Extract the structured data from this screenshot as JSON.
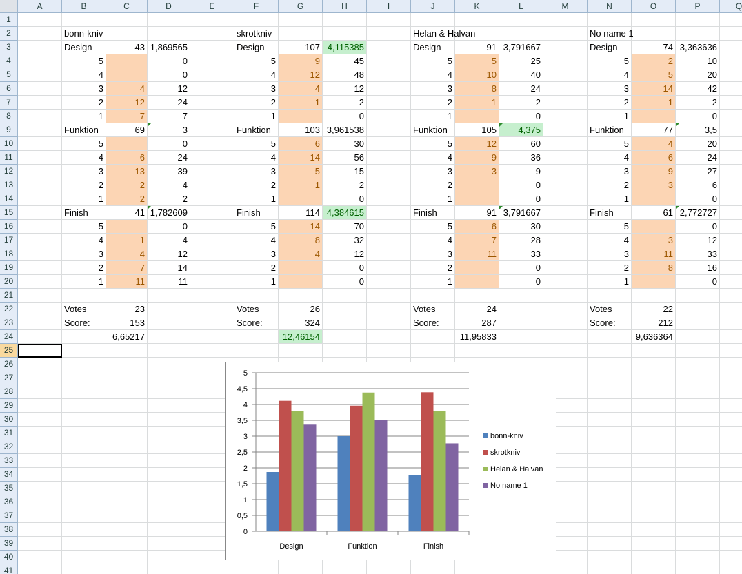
{
  "columns": [
    "A",
    "B",
    "C",
    "D",
    "E",
    "F",
    "G",
    "H",
    "I",
    "J",
    "K",
    "L",
    "M",
    "N",
    "O",
    "P",
    "Q"
  ],
  "rows_count": 41,
  "active_cell": "A25",
  "cells": [
    [
      "B2",
      "bonn-kniv",
      "t",
      ""
    ],
    [
      "F2",
      "skrotkniv",
      "t",
      ""
    ],
    [
      "J2",
      "Helan & Halvan",
      "t",
      ""
    ],
    [
      "N2",
      "No name 1",
      "t",
      ""
    ],
    [
      "B3",
      "Design",
      "t",
      ""
    ],
    [
      "C3",
      "43",
      "n",
      ""
    ],
    [
      "D3",
      "1,869565",
      "n",
      ""
    ],
    [
      "B4",
      "5",
      "n",
      ""
    ],
    [
      "C4",
      "",
      "n",
      "o"
    ],
    [
      "D4",
      "0",
      "n",
      ""
    ],
    [
      "B5",
      "4",
      "n",
      ""
    ],
    [
      "C5",
      "",
      "n",
      "o"
    ],
    [
      "D5",
      "0",
      "n",
      ""
    ],
    [
      "B6",
      "3",
      "n",
      ""
    ],
    [
      "C6",
      "4",
      "n",
      "o"
    ],
    [
      "D6",
      "12",
      "n",
      ""
    ],
    [
      "B7",
      "2",
      "n",
      ""
    ],
    [
      "C7",
      "12",
      "n",
      "o"
    ],
    [
      "D7",
      "24",
      "n",
      ""
    ],
    [
      "B8",
      "1",
      "n",
      ""
    ],
    [
      "C8",
      "7",
      "n",
      "o"
    ],
    [
      "D8",
      "7",
      "n",
      ""
    ],
    [
      "B9",
      "Funktion",
      "t",
      ""
    ],
    [
      "C9",
      "69",
      "n",
      ""
    ],
    [
      "D9",
      "3",
      "n",
      "tri"
    ],
    [
      "B10",
      "5",
      "n",
      ""
    ],
    [
      "C10",
      "",
      "n",
      "o"
    ],
    [
      "D10",
      "0",
      "n",
      ""
    ],
    [
      "B11",
      "4",
      "n",
      ""
    ],
    [
      "C11",
      "6",
      "n",
      "o"
    ],
    [
      "D11",
      "24",
      "n",
      ""
    ],
    [
      "B12",
      "3",
      "n",
      ""
    ],
    [
      "C12",
      "13",
      "n",
      "o"
    ],
    [
      "D12",
      "39",
      "n",
      ""
    ],
    [
      "B13",
      "2",
      "n",
      ""
    ],
    [
      "C13",
      "2",
      "n",
      "o"
    ],
    [
      "D13",
      "4",
      "n",
      ""
    ],
    [
      "B14",
      "1",
      "n",
      ""
    ],
    [
      "C14",
      "2",
      "n",
      "o"
    ],
    [
      "D14",
      "2",
      "n",
      ""
    ],
    [
      "B15",
      "Finish",
      "t",
      ""
    ],
    [
      "C15",
      "41",
      "n",
      ""
    ],
    [
      "D15",
      "1,782609",
      "n",
      "tri"
    ],
    [
      "B16",
      "5",
      "n",
      ""
    ],
    [
      "C16",
      "",
      "n",
      "o"
    ],
    [
      "D16",
      "0",
      "n",
      ""
    ],
    [
      "B17",
      "4",
      "n",
      ""
    ],
    [
      "C17",
      "1",
      "n",
      "o"
    ],
    [
      "D17",
      "4",
      "n",
      ""
    ],
    [
      "B18",
      "3",
      "n",
      ""
    ],
    [
      "C18",
      "4",
      "n",
      "o"
    ],
    [
      "D18",
      "12",
      "n",
      ""
    ],
    [
      "B19",
      "2",
      "n",
      ""
    ],
    [
      "C19",
      "7",
      "n",
      "o"
    ],
    [
      "D19",
      "14",
      "n",
      ""
    ],
    [
      "B20",
      "1",
      "n",
      ""
    ],
    [
      "C20",
      "11",
      "n",
      "o"
    ],
    [
      "D20",
      "11",
      "n",
      ""
    ],
    [
      "B22",
      "Votes",
      "t",
      ""
    ],
    [
      "C22",
      "23",
      "n",
      ""
    ],
    [
      "B23",
      "Score:",
      "t",
      ""
    ],
    [
      "C23",
      "153",
      "n",
      ""
    ],
    [
      "C24",
      "6,65217",
      "n",
      ""
    ],
    [
      "F3",
      "Design",
      "t",
      ""
    ],
    [
      "G3",
      "107",
      "n",
      ""
    ],
    [
      "H3",
      "4,115385",
      "n",
      "g"
    ],
    [
      "F4",
      "5",
      "n",
      ""
    ],
    [
      "G4",
      "9",
      "n",
      "o"
    ],
    [
      "H4",
      "45",
      "n",
      ""
    ],
    [
      "F5",
      "4",
      "n",
      ""
    ],
    [
      "G5",
      "12",
      "n",
      "o"
    ],
    [
      "H5",
      "48",
      "n",
      ""
    ],
    [
      "F6",
      "3",
      "n",
      ""
    ],
    [
      "G6",
      "4",
      "n",
      "o"
    ],
    [
      "H6",
      "12",
      "n",
      ""
    ],
    [
      "F7",
      "2",
      "n",
      ""
    ],
    [
      "G7",
      "1",
      "n",
      "o"
    ],
    [
      "H7",
      "2",
      "n",
      ""
    ],
    [
      "F8",
      "1",
      "n",
      ""
    ],
    [
      "G8",
      "",
      "n",
      "o"
    ],
    [
      "H8",
      "0",
      "n",
      ""
    ],
    [
      "F9",
      "Funktion",
      "t",
      ""
    ],
    [
      "G9",
      "103",
      "n",
      ""
    ],
    [
      "H9",
      "3,961538",
      "n",
      ""
    ],
    [
      "F10",
      "5",
      "n",
      ""
    ],
    [
      "G10",
      "6",
      "n",
      "o"
    ],
    [
      "H10",
      "30",
      "n",
      ""
    ],
    [
      "F11",
      "4",
      "n",
      ""
    ],
    [
      "G11",
      "14",
      "n",
      "o"
    ],
    [
      "H11",
      "56",
      "n",
      ""
    ],
    [
      "F12",
      "3",
      "n",
      ""
    ],
    [
      "G12",
      "5",
      "n",
      "o"
    ],
    [
      "H12",
      "15",
      "n",
      ""
    ],
    [
      "F13",
      "2",
      "n",
      ""
    ],
    [
      "G13",
      "1",
      "n",
      "o"
    ],
    [
      "H13",
      "2",
      "n",
      ""
    ],
    [
      "F14",
      "1",
      "n",
      ""
    ],
    [
      "G14",
      "",
      "n",
      "o"
    ],
    [
      "H14",
      "0",
      "n",
      ""
    ],
    [
      "F15",
      "Finish",
      "t",
      ""
    ],
    [
      "G15",
      "114",
      "n",
      ""
    ],
    [
      "H15",
      "4,384615",
      "n",
      "g"
    ],
    [
      "F16",
      "5",
      "n",
      ""
    ],
    [
      "G16",
      "14",
      "n",
      "o"
    ],
    [
      "H16",
      "70",
      "n",
      ""
    ],
    [
      "F17",
      "4",
      "n",
      ""
    ],
    [
      "G17",
      "8",
      "n",
      "o"
    ],
    [
      "H17",
      "32",
      "n",
      ""
    ],
    [
      "F18",
      "3",
      "n",
      ""
    ],
    [
      "G18",
      "4",
      "n",
      "o"
    ],
    [
      "H18",
      "12",
      "n",
      ""
    ],
    [
      "F19",
      "2",
      "n",
      ""
    ],
    [
      "G19",
      "",
      "n",
      "o"
    ],
    [
      "H19",
      "0",
      "n",
      ""
    ],
    [
      "F20",
      "1",
      "n",
      ""
    ],
    [
      "G20",
      "",
      "n",
      "o"
    ],
    [
      "H20",
      "0",
      "n",
      ""
    ],
    [
      "F22",
      "Votes",
      "t",
      ""
    ],
    [
      "G22",
      "26",
      "n",
      ""
    ],
    [
      "F23",
      "Score:",
      "t",
      ""
    ],
    [
      "G23",
      "324",
      "n",
      ""
    ],
    [
      "G24",
      "12,46154",
      "n",
      "g"
    ],
    [
      "J3",
      "Design",
      "t",
      ""
    ],
    [
      "K3",
      "91",
      "n",
      ""
    ],
    [
      "L3",
      "3,791667",
      "n",
      ""
    ],
    [
      "J4",
      "5",
      "n",
      ""
    ],
    [
      "K4",
      "5",
      "n",
      "o"
    ],
    [
      "L4",
      "25",
      "n",
      ""
    ],
    [
      "J5",
      "4",
      "n",
      ""
    ],
    [
      "K5",
      "10",
      "n",
      "o"
    ],
    [
      "L5",
      "40",
      "n",
      ""
    ],
    [
      "J6",
      "3",
      "n",
      ""
    ],
    [
      "K6",
      "8",
      "n",
      "o"
    ],
    [
      "L6",
      "24",
      "n",
      ""
    ],
    [
      "J7",
      "2",
      "n",
      ""
    ],
    [
      "K7",
      "1",
      "n",
      "o"
    ],
    [
      "L7",
      "2",
      "n",
      ""
    ],
    [
      "J8",
      "1",
      "n",
      ""
    ],
    [
      "K8",
      "",
      "n",
      "o"
    ],
    [
      "L8",
      "0",
      "n",
      ""
    ],
    [
      "J9",
      "Funktion",
      "t",
      ""
    ],
    [
      "K9",
      "105",
      "n",
      ""
    ],
    [
      "L9",
      "4,375",
      "n",
      "g tri"
    ],
    [
      "J10",
      "5",
      "n",
      ""
    ],
    [
      "K10",
      "12",
      "n",
      "o"
    ],
    [
      "L10",
      "60",
      "n",
      ""
    ],
    [
      "J11",
      "4",
      "n",
      ""
    ],
    [
      "K11",
      "9",
      "n",
      "o"
    ],
    [
      "L11",
      "36",
      "n",
      ""
    ],
    [
      "J12",
      "3",
      "n",
      ""
    ],
    [
      "K12",
      "3",
      "n",
      "o"
    ],
    [
      "L12",
      "9",
      "n",
      ""
    ],
    [
      "J13",
      "2",
      "n",
      ""
    ],
    [
      "K13",
      "",
      "n",
      "o"
    ],
    [
      "L13",
      "0",
      "n",
      ""
    ],
    [
      "J14",
      "1",
      "n",
      ""
    ],
    [
      "K14",
      "",
      "n",
      "o"
    ],
    [
      "L14",
      "0",
      "n",
      ""
    ],
    [
      "J15",
      "Finish",
      "t",
      ""
    ],
    [
      "K15",
      "91",
      "n",
      ""
    ],
    [
      "L15",
      "3,791667",
      "n",
      "tri"
    ],
    [
      "J16",
      "5",
      "n",
      ""
    ],
    [
      "K16",
      "6",
      "n",
      "o"
    ],
    [
      "L16",
      "30",
      "n",
      ""
    ],
    [
      "J17",
      "4",
      "n",
      ""
    ],
    [
      "K17",
      "7",
      "n",
      "o"
    ],
    [
      "L17",
      "28",
      "n",
      ""
    ],
    [
      "J18",
      "3",
      "n",
      ""
    ],
    [
      "K18",
      "11",
      "n",
      "o"
    ],
    [
      "L18",
      "33",
      "n",
      ""
    ],
    [
      "J19",
      "2",
      "n",
      ""
    ],
    [
      "K19",
      "",
      "n",
      "o"
    ],
    [
      "L19",
      "0",
      "n",
      ""
    ],
    [
      "J20",
      "1",
      "n",
      ""
    ],
    [
      "K20",
      "",
      "n",
      "o"
    ],
    [
      "L20",
      "0",
      "n",
      ""
    ],
    [
      "J22",
      "Votes",
      "t",
      ""
    ],
    [
      "K22",
      "24",
      "n",
      ""
    ],
    [
      "J23",
      "Score:",
      "t",
      ""
    ],
    [
      "K23",
      "287",
      "n",
      ""
    ],
    [
      "K24",
      "11,95833",
      "n",
      ""
    ],
    [
      "N3",
      "Design",
      "t",
      ""
    ],
    [
      "O3",
      "74",
      "n",
      ""
    ],
    [
      "P3",
      "3,363636",
      "n",
      ""
    ],
    [
      "N4",
      "5",
      "n",
      ""
    ],
    [
      "O4",
      "2",
      "n",
      "o"
    ],
    [
      "P4",
      "10",
      "n",
      ""
    ],
    [
      "N5",
      "4",
      "n",
      ""
    ],
    [
      "O5",
      "5",
      "n",
      "o"
    ],
    [
      "P5",
      "20",
      "n",
      ""
    ],
    [
      "N6",
      "3",
      "n",
      ""
    ],
    [
      "O6",
      "14",
      "n",
      "o"
    ],
    [
      "P6",
      "42",
      "n",
      ""
    ],
    [
      "N7",
      "2",
      "n",
      ""
    ],
    [
      "O7",
      "1",
      "n",
      "o"
    ],
    [
      "P7",
      "2",
      "n",
      ""
    ],
    [
      "N8",
      "1",
      "n",
      ""
    ],
    [
      "O8",
      "",
      "n",
      "o"
    ],
    [
      "P8",
      "0",
      "n",
      ""
    ],
    [
      "N9",
      "Funktion",
      "t",
      ""
    ],
    [
      "O9",
      "77",
      "n",
      ""
    ],
    [
      "P9",
      "3,5",
      "n",
      "tri"
    ],
    [
      "N10",
      "5",
      "n",
      ""
    ],
    [
      "O10",
      "4",
      "n",
      "o"
    ],
    [
      "P10",
      "20",
      "n",
      ""
    ],
    [
      "N11",
      "4",
      "n",
      ""
    ],
    [
      "O11",
      "6",
      "n",
      "o"
    ],
    [
      "P11",
      "24",
      "n",
      ""
    ],
    [
      "N12",
      "3",
      "n",
      ""
    ],
    [
      "O12",
      "9",
      "n",
      "o"
    ],
    [
      "P12",
      "27",
      "n",
      ""
    ],
    [
      "N13",
      "2",
      "n",
      ""
    ],
    [
      "O13",
      "3",
      "n",
      "o"
    ],
    [
      "P13",
      "6",
      "n",
      ""
    ],
    [
      "N14",
      "1",
      "n",
      ""
    ],
    [
      "O14",
      "",
      "n",
      "o"
    ],
    [
      "P14",
      "0",
      "n",
      ""
    ],
    [
      "N15",
      "Finish",
      "t",
      ""
    ],
    [
      "O15",
      "61",
      "n",
      ""
    ],
    [
      "P15",
      "2,772727",
      "n",
      "tri"
    ],
    [
      "N16",
      "5",
      "n",
      ""
    ],
    [
      "O16",
      "",
      "n",
      "o"
    ],
    [
      "P16",
      "0",
      "n",
      ""
    ],
    [
      "N17",
      "4",
      "n",
      ""
    ],
    [
      "O17",
      "3",
      "n",
      "o"
    ],
    [
      "P17",
      "12",
      "n",
      ""
    ],
    [
      "N18",
      "3",
      "n",
      ""
    ],
    [
      "O18",
      "11",
      "n",
      "o"
    ],
    [
      "P18",
      "33",
      "n",
      ""
    ],
    [
      "N19",
      "2",
      "n",
      ""
    ],
    [
      "O19",
      "8",
      "n",
      "o"
    ],
    [
      "P19",
      "16",
      "n",
      ""
    ],
    [
      "N20",
      "1",
      "n",
      ""
    ],
    [
      "O20",
      "",
      "n",
      "o"
    ],
    [
      "P20",
      "0",
      "n",
      ""
    ],
    [
      "N22",
      "Votes",
      "t",
      ""
    ],
    [
      "O22",
      "22",
      "n",
      ""
    ],
    [
      "N23",
      "Score:",
      "t",
      ""
    ],
    [
      "O23",
      "212",
      "n",
      ""
    ],
    [
      "O24",
      "9,636364",
      "n",
      ""
    ]
  ],
  "colors": {
    "orange_fill": "#fcd5b4",
    "green_fill": "#c6efce",
    "header_fill": "#e4ecf7"
  },
  "chart_data": {
    "type": "bar",
    "categories": [
      "Design",
      "Funktion",
      "Finish"
    ],
    "series": [
      {
        "name": "bonn-kniv",
        "values": [
          1.869565,
          3,
          1.782609
        ],
        "color": "#4f81bd"
      },
      {
        "name": "skrotkniv",
        "values": [
          4.115385,
          3.961538,
          4.384615
        ],
        "color": "#c0504d"
      },
      {
        "name": "Helan & Halvan",
        "values": [
          3.791667,
          4.375,
          3.791667
        ],
        "color": "#9bbb59"
      },
      {
        "name": "No name 1",
        "values": [
          3.363636,
          3.5,
          2.772727
        ],
        "color": "#8064a2"
      }
    ],
    "ylim": [
      0,
      5
    ],
    "yticks": [
      "0",
      "0,5",
      "1",
      "1,5",
      "2",
      "2,5",
      "3",
      "3,5",
      "4",
      "4,5",
      "5"
    ],
    "grid": true,
    "legend": "right"
  }
}
